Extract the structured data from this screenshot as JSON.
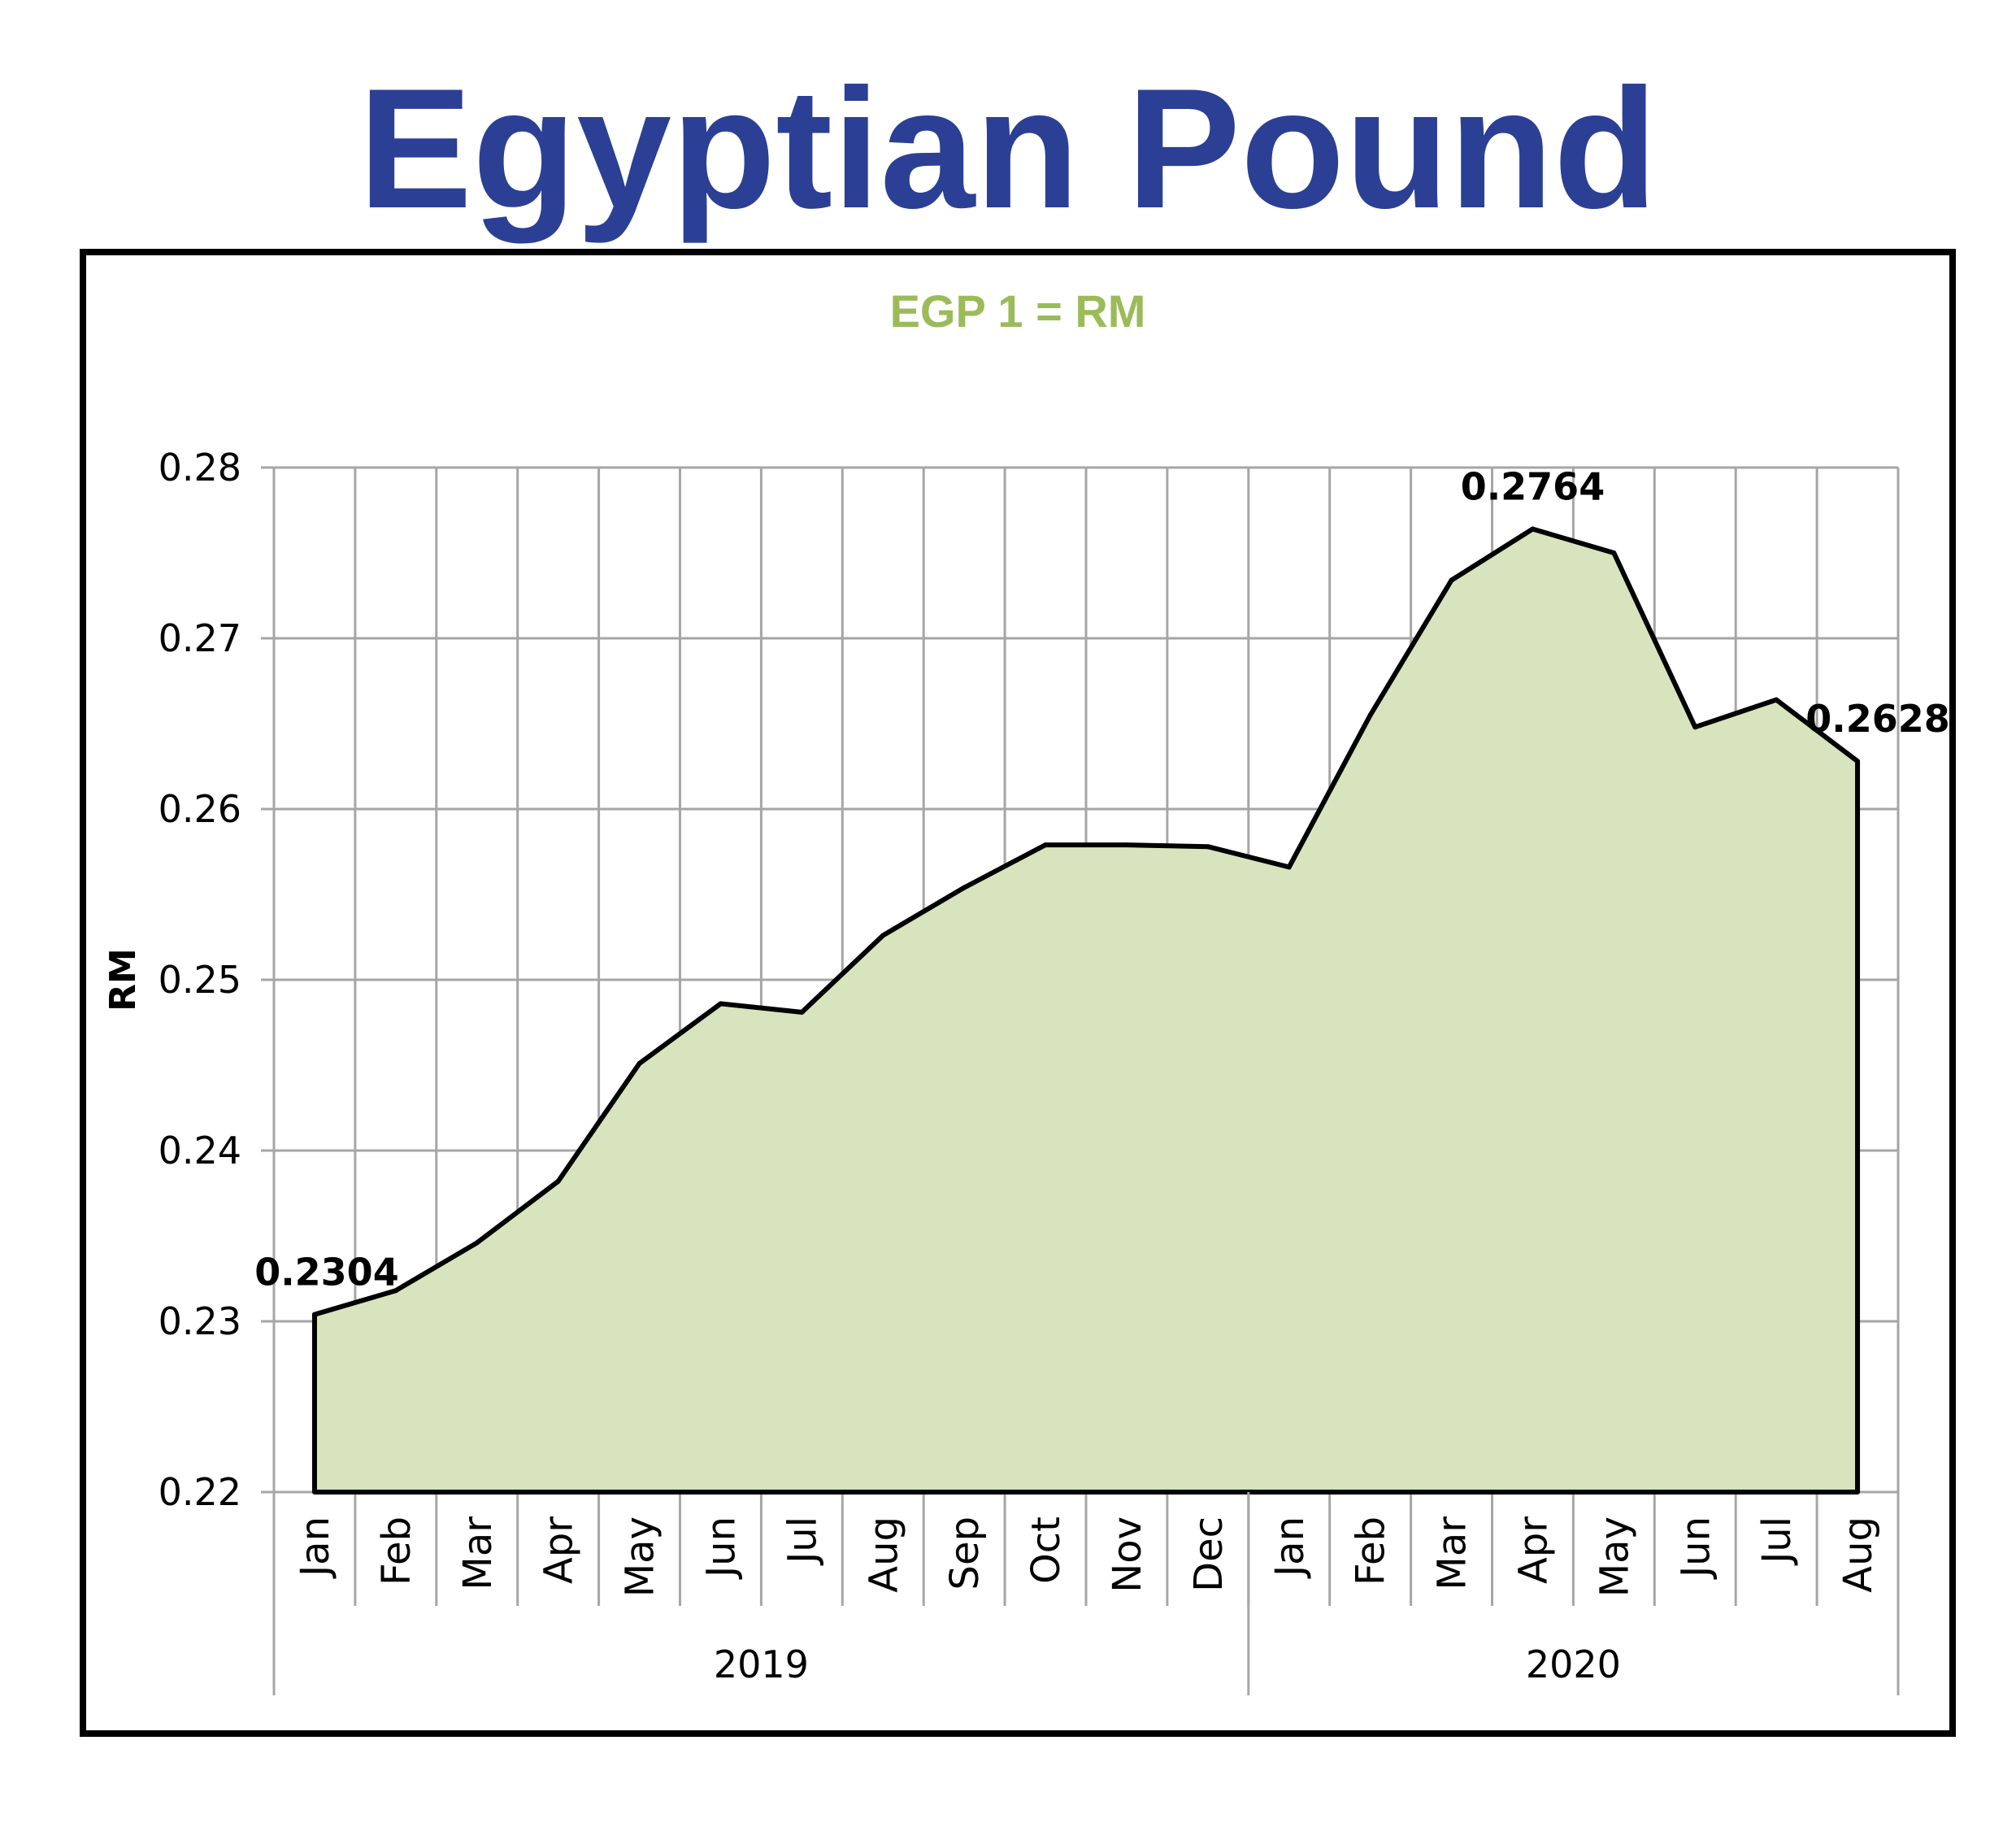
{
  "page_title": "Egyptian Pound",
  "colors": {
    "title": "#2b3f95",
    "subtitle": "#9bbb59",
    "area_fill": "#d7e4bd",
    "line": "#000000",
    "grid": "#a6a6a6"
  },
  "chart_data": {
    "type": "area",
    "subtitle": "EGP 1 = RM",
    "ylabel": "RM",
    "ylim": [
      0.22,
      0.28
    ],
    "yticks": [
      "0.22",
      "0.23",
      "0.24",
      "0.25",
      "0.26",
      "0.27",
      "0.28"
    ],
    "grid": true,
    "categories": [
      "Jan",
      "Feb",
      "Mar",
      "Apr",
      "May",
      "Jun",
      "Jul",
      "Aug",
      "Sep",
      "Oct",
      "Nov",
      "Dec",
      "Jan",
      "Feb",
      "Mar",
      "Apr",
      "May",
      "Jun",
      "Jul",
      "Aug"
    ],
    "year_groups": [
      {
        "label": "2019",
        "count": 12
      },
      {
        "label": "2020",
        "count": 8
      }
    ],
    "values": [
      0.2304,
      0.2318,
      0.2346,
      0.2382,
      0.2451,
      0.2486,
      0.2481,
      0.2526,
      0.2554,
      0.2579,
      0.2579,
      0.2578,
      0.2566,
      0.2655,
      0.2734,
      0.2764,
      0.275,
      0.2648,
      0.2664,
      0.2628
    ],
    "data_labels": [
      {
        "index": 0,
        "text": "0.2304"
      },
      {
        "index": 15,
        "text": "0.2764"
      },
      {
        "index": 19,
        "text": "0.2628"
      }
    ]
  }
}
